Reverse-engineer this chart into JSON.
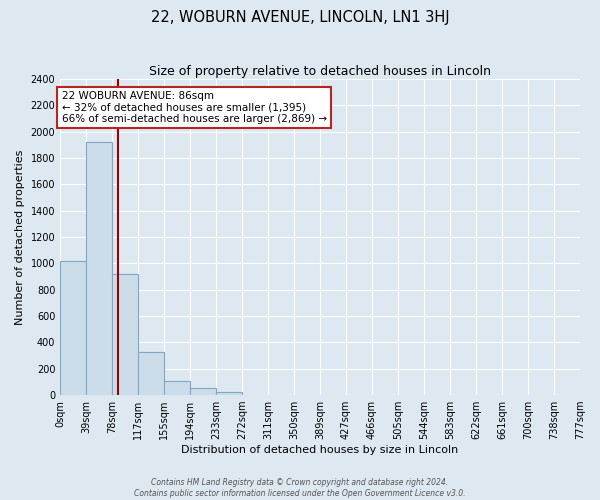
{
  "title": "22, WOBURN AVENUE, LINCOLN, LN1 3HJ",
  "subtitle": "Size of property relative to detached houses in Lincoln",
  "xlabel": "Distribution of detached houses by size in Lincoln",
  "ylabel": "Number of detached properties",
  "bar_values": [
    1020,
    1920,
    920,
    330,
    110,
    55,
    20,
    0,
    0,
    0,
    0,
    0,
    0,
    0,
    0,
    0,
    0,
    0,
    0,
    0
  ],
  "bin_labels": [
    "0sqm",
    "39sqm",
    "78sqm",
    "117sqm",
    "155sqm",
    "194sqm",
    "233sqm",
    "272sqm",
    "311sqm",
    "350sqm",
    "389sqm",
    "427sqm",
    "466sqm",
    "505sqm",
    "544sqm",
    "583sqm",
    "622sqm",
    "661sqm",
    "700sqm",
    "738sqm",
    "777sqm"
  ],
  "bin_edges": [
    0,
    39,
    78,
    117,
    155,
    194,
    233,
    272,
    311,
    350,
    389,
    427,
    466,
    505,
    544,
    583,
    622,
    661,
    700,
    738,
    777
  ],
  "bar_color": "#cddce9",
  "bar_edge_color": "#7aaac8",
  "vline_x": 86,
  "vline_color": "#990000",
  "annotation_title": "22 WOBURN AVENUE: 86sqm",
  "annotation_line1": "← 32% of detached houses are smaller (1,395)",
  "annotation_line2": "66% of semi-detached houses are larger (2,869) →",
  "annotation_box_color": "#ffffff",
  "annotation_border_color": "#bb2222",
  "ylim": [
    0,
    2400
  ],
  "yticks": [
    0,
    200,
    400,
    600,
    800,
    1000,
    1200,
    1400,
    1600,
    1800,
    2000,
    2200,
    2400
  ],
  "footer1": "Contains HM Land Registry data © Crown copyright and database right 2024.",
  "footer2": "Contains public sector information licensed under the Open Government Licence v3.0.",
  "bg_color": "#dde8f0",
  "plot_bg_color": "#dde8f0",
  "grid_color": "#ffffff",
  "figsize": [
    6.0,
    5.0
  ],
  "dpi": 100
}
